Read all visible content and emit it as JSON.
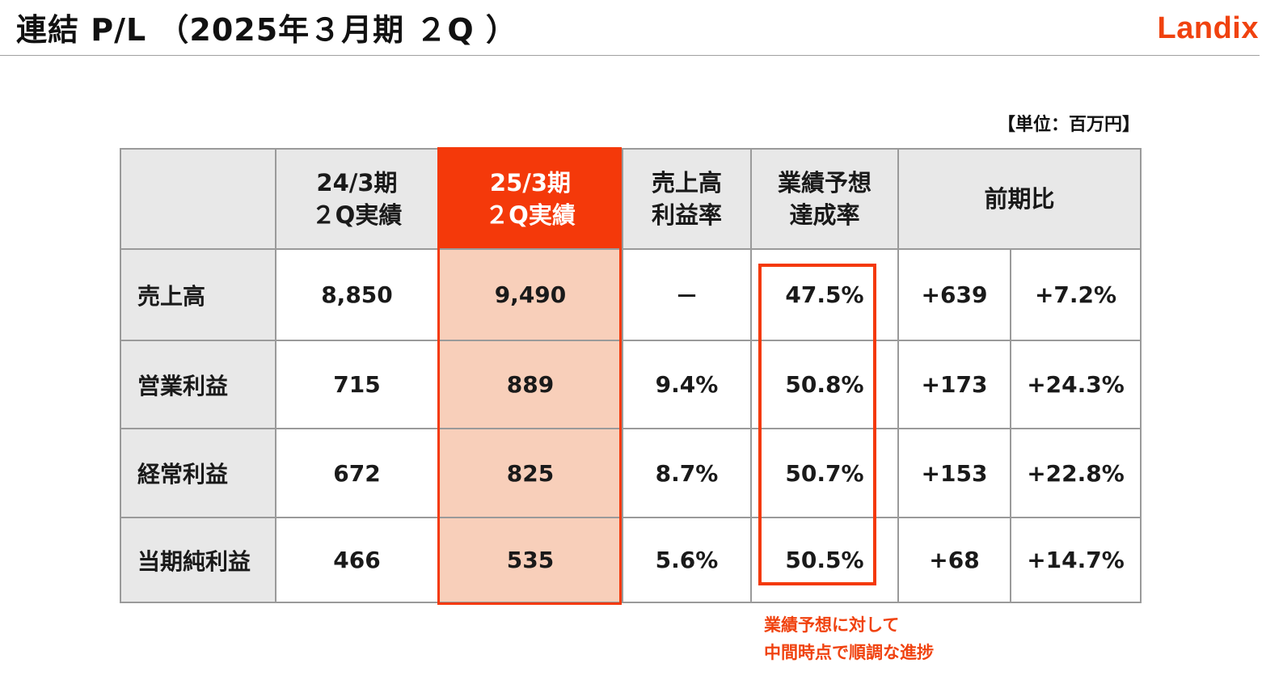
{
  "header": {
    "title": "連結 P/L （2025年３月期 ２Q ）",
    "logo": "Landix"
  },
  "unit_label": "【単位：百万円】",
  "table": {
    "headers": {
      "prev": [
        "24/3期",
        "２Q実績"
      ],
      "curr": [
        "25/3期",
        "２Q実績"
      ],
      "margin": [
        "売上高",
        "利益率"
      ],
      "achievement": [
        "業績予想",
        "達成率"
      ],
      "yoy": [
        "前期比"
      ]
    },
    "rows": [
      {
        "label": "売上高",
        "prev": "8,850",
        "curr": "9,490",
        "margin": "－",
        "achievement": "47.5%",
        "yoy_abs": "+639",
        "yoy_pct": "+7.2%"
      },
      {
        "label": "営業利益",
        "prev": "715",
        "curr": "889",
        "margin": "9.4%",
        "achievement": "50.8%",
        "yoy_abs": "+173",
        "yoy_pct": "+24.3%"
      },
      {
        "label": "経常利益",
        "prev": "672",
        "curr": "825",
        "margin": "8.7%",
        "achievement": "50.7%",
        "yoy_abs": "+153",
        "yoy_pct": "+22.8%"
      },
      {
        "label": "当期純利益",
        "prev": "466",
        "curr": "535",
        "margin": "5.6%",
        "achievement": "50.5%",
        "yoy_abs": "+68",
        "yoy_pct": "+14.7%"
      }
    ]
  },
  "note": [
    "業績予想に対して",
    "中間時点で順調な進捗"
  ],
  "colors": {
    "accent": "#f4390a",
    "highlight_fill": "#f8cfba",
    "header_fill": "#e8e8e8",
    "grid": "#9a9a9a"
  }
}
